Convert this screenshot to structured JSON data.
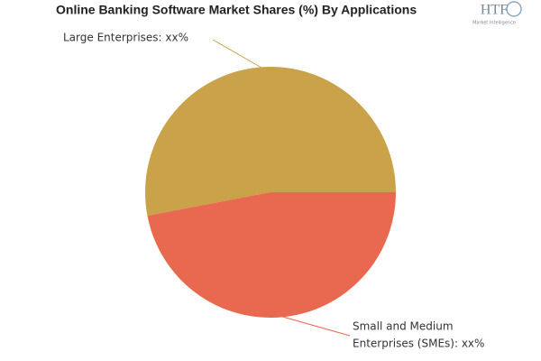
{
  "chart_data": {
    "type": "pie",
    "title": "Online Banking Software Market Shares (%) By Applications",
    "labels": [
      [
        "Large Enterprises: xx%"
      ],
      [
        "Small and Medium",
        "Enterprises (SMEs): xx%"
      ]
    ],
    "values": [
      53,
      47
    ],
    "colors": [
      "#c9a249",
      "#e8694f"
    ]
  },
  "logo": {
    "mark": "HTF",
    "subtitle": "Market Intelligence"
  }
}
